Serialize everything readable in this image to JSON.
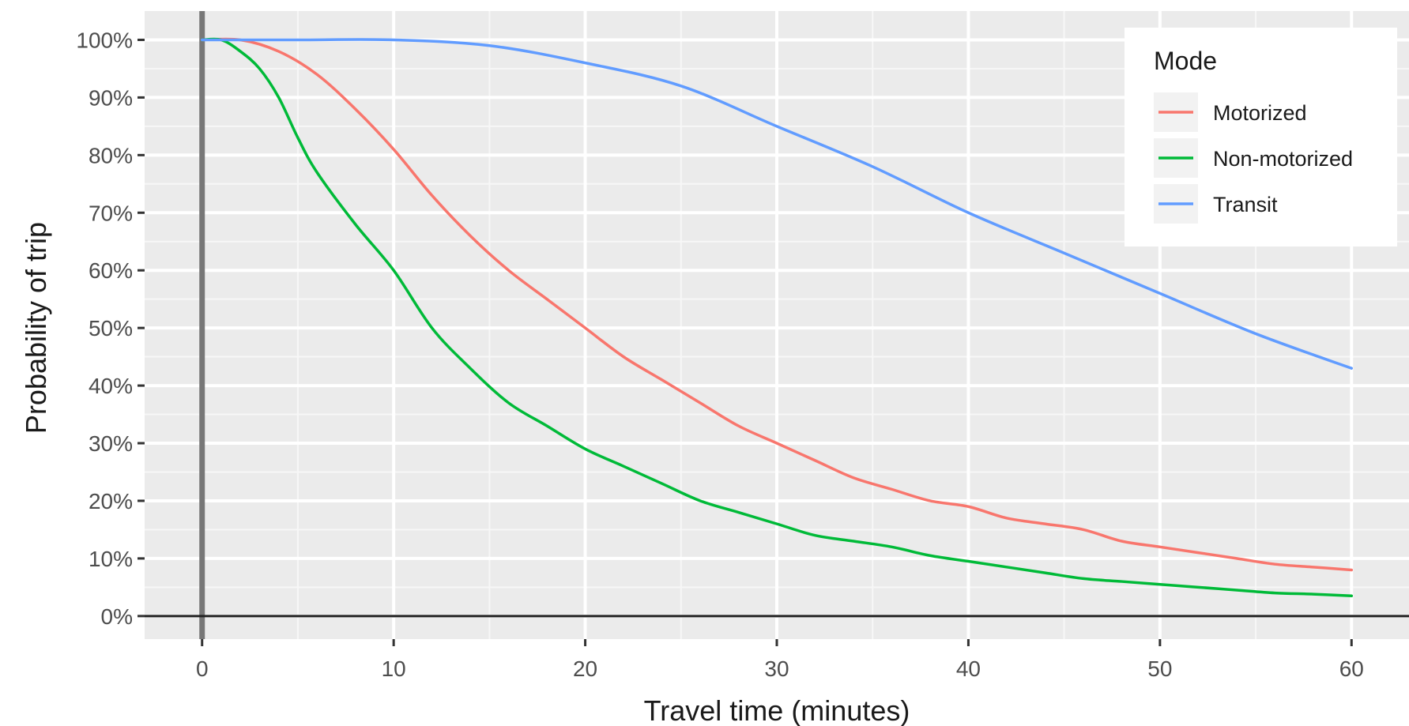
{
  "chart_data": {
    "type": "line",
    "xlabel": "Travel time (minutes)",
    "ylabel": "Probability of trip",
    "xlim": [
      -3,
      63
    ],
    "ylim": [
      -4,
      105
    ],
    "x_ticks": [
      0,
      10,
      20,
      30,
      40,
      50,
      60
    ],
    "x_tick_labels": [
      "0",
      "10",
      "20",
      "30",
      "40",
      "50",
      "60"
    ],
    "y_ticks": [
      0,
      10,
      20,
      30,
      40,
      50,
      60,
      70,
      80,
      90,
      100
    ],
    "y_tick_labels": [
      "0%",
      "10%",
      "20%",
      "30%",
      "40%",
      "50%",
      "60%",
      "70%",
      "80%",
      "90%",
      "100%"
    ],
    "grid": true,
    "reference_lines": {
      "vertical_x": 0,
      "horizontal_y": 0
    },
    "legend": {
      "title": "Mode",
      "position": "top-right"
    },
    "series": [
      {
        "name": "Motorized",
        "color": "#F8766D",
        "x": [
          0,
          2,
          4,
          6,
          8,
          10,
          12,
          14,
          16,
          18,
          20,
          22,
          24,
          26,
          28,
          30,
          32,
          34,
          36,
          38,
          40,
          42,
          44,
          46,
          48,
          50,
          52,
          54,
          56,
          58,
          60
        ],
        "y": [
          100,
          100,
          98,
          94,
          88,
          81,
          73,
          66,
          60,
          55,
          50,
          45,
          41,
          37,
          33,
          30,
          27,
          24,
          22,
          20,
          19,
          17,
          16,
          15,
          13,
          12,
          11,
          10,
          9,
          8.5,
          8
        ]
      },
      {
        "name": "Non-motorized",
        "color": "#00BA38",
        "x": [
          0,
          1,
          2,
          3,
          4,
          5,
          6,
          8,
          10,
          12,
          14,
          16,
          18,
          20,
          22,
          24,
          26,
          28,
          30,
          32,
          34,
          36,
          38,
          40,
          42,
          44,
          46,
          48,
          50,
          52,
          54,
          56,
          58,
          60
        ],
        "y": [
          100,
          100,
          98,
          95,
          90,
          83,
          77,
          68,
          60,
          50,
          43,
          37,
          33,
          29,
          26,
          23,
          20,
          18,
          16,
          14,
          13,
          12,
          10.5,
          9.5,
          8.5,
          7.5,
          6.5,
          6,
          5.5,
          5,
          4.5,
          4,
          3.8,
          3.5
        ]
      },
      {
        "name": "Transit",
        "color": "#619CFF",
        "x": [
          0,
          5,
          10,
          15,
          20,
          25,
          30,
          35,
          40,
          45,
          50,
          55,
          60
        ],
        "y": [
          100,
          100,
          100,
          99,
          96,
          92,
          85,
          78,
          70,
          63,
          56,
          49,
          43
        ]
      }
    ]
  }
}
